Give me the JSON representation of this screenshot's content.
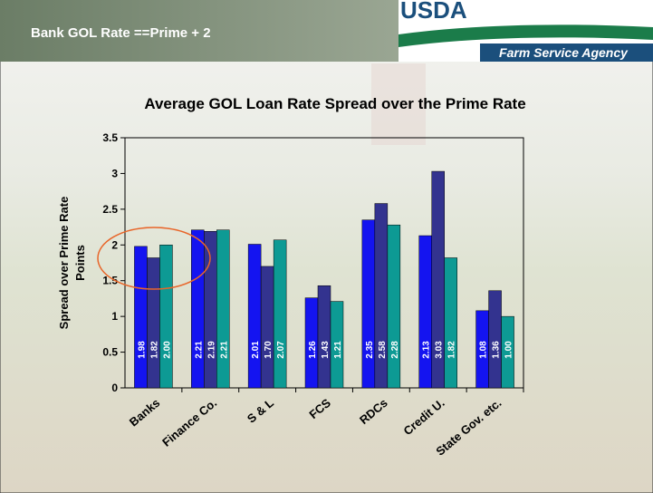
{
  "header": {
    "title": "Bank GOL Rate ==Prime + 2",
    "logo": "USDA",
    "agency": "Farm Service Agency"
  },
  "chart_data": {
    "type": "bar",
    "title": "Average GOL Loan Rate Spread over the Prime Rate",
    "ylabel_lines": [
      "Spread over Prime Rate",
      "Points"
    ],
    "categories": [
      "Banks",
      "Finance Co.",
      "S & L",
      "FCS",
      "RDCs",
      "Credit U.",
      "State Gov. etc."
    ],
    "series": [
      {
        "color": "#1414f0",
        "values": [
          1.98,
          2.21,
          2.01,
          1.26,
          2.35,
          2.13,
          1.08
        ],
        "value_labels": [
          "1.98",
          "2.21",
          "2.01",
          "1.26",
          "2.35",
          "2.13",
          "1.08"
        ]
      },
      {
        "color": "#33338f",
        "values": [
          1.82,
          2.19,
          1.7,
          1.43,
          2.58,
          3.03,
          1.36
        ],
        "value_labels": [
          "1.82",
          "2.19",
          "1.70",
          "1.43",
          "2.58",
          "3.03",
          "1.36"
        ]
      },
      {
        "color": "#0d9a94",
        "values": [
          2.0,
          2.21,
          2.07,
          1.21,
          2.28,
          1.82,
          1.0
        ],
        "value_labels": [
          "2.00",
          "2.21",
          "2.07",
          "1.21",
          "2.28",
          "1.82",
          "1.00"
        ]
      }
    ],
    "ylim": [
      0,
      3.5
    ],
    "yticks": [
      0,
      0.5,
      1,
      1.5,
      2,
      2.5,
      3,
      3.5
    ]
  }
}
